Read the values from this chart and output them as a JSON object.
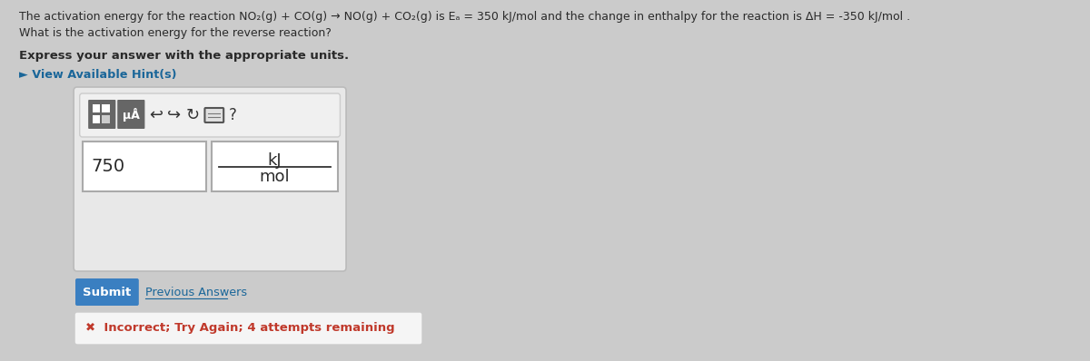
{
  "background_color": "#cbcbcb",
  "title_line1": "The activation energy for the reaction NO₂(g) + CO(g) → NO(g) + CO₂(g) is Eₐ = 350 kJ/mol and the change in enthalpy for the reaction is ΔH = -350 kJ/mol .",
  "title_line2": "What is the activation energy for the reverse reaction?",
  "bold_text": "Express your answer with the appropriate units.",
  "hint_text": "► View Available Hint(s)",
  "input_value": "750",
  "unit_top": "kJ",
  "unit_bottom": "mol",
  "submit_text": "Submit",
  "submit_color": "#3a7fc1",
  "previous_answers_text": "Previous Answers",
  "incorrect_text": "✖  Incorrect; Try Again; 4 attempts remaining",
  "incorrect_color": "#c0392b",
  "text_color": "#2a2a2a",
  "hint_color": "#1a6699",
  "outer_box_bg": "#e8e8e8",
  "outer_box_border": "#bbbbbb",
  "input_bg": "#ffffff",
  "input_border": "#aaaaaa",
  "toolbar_bg": "#e0e0e0",
  "toolbar_border": "#cccccc",
  "icon_dark_bg": "#666666",
  "icon_light_bg": "#999999"
}
